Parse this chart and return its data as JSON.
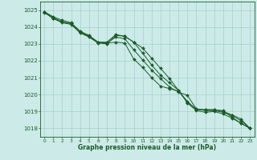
{
  "background_color": "#cceae7",
  "grid_color": "#aacfcc",
  "line_color": "#1a5c2a",
  "marker_color": "#1a5c2a",
  "xlabel": "Graphe pression niveau de la mer (hPa)",
  "xlim": [
    -0.5,
    23.5
  ],
  "ylim": [
    1017.5,
    1025.5
  ],
  "yticks": [
    1018,
    1019,
    1020,
    1021,
    1022,
    1023,
    1024,
    1025
  ],
  "xticks": [
    0,
    1,
    2,
    3,
    4,
    5,
    6,
    7,
    8,
    9,
    10,
    11,
    12,
    13,
    14,
    15,
    16,
    17,
    18,
    19,
    20,
    21,
    22,
    23
  ],
  "series": [
    [
      1024.9,
      1024.6,
      1024.4,
      1024.25,
      1023.75,
      1023.5,
      1023.1,
      1023.1,
      1023.55,
      1023.45,
      1023.1,
      1022.75,
      1022.15,
      1021.55,
      1020.95,
      1020.25,
      1019.55,
      1019.15,
      1019.1,
      1019.1,
      1019.05,
      1018.65,
      1018.3,
      1018.0
    ],
    [
      1024.9,
      1024.55,
      1024.3,
      1024.2,
      1023.7,
      1023.45,
      1023.1,
      1023.05,
      1023.4,
      1023.3,
      1022.65,
      1022.05,
      1021.45,
      1020.95,
      1020.45,
      1020.15,
      1019.95,
      1019.15,
      1019.05,
      1019.05,
      1018.95,
      1018.75,
      1018.45,
      1018.0
    ],
    [
      1024.9,
      1024.5,
      1024.3,
      1024.2,
      1023.7,
      1023.45,
      1023.1,
      1023.05,
      1023.1,
      1023.05,
      1022.1,
      1021.6,
      1021.0,
      1020.5,
      1020.35,
      1020.2,
      1019.6,
      1019.1,
      1019.1,
      1019.1,
      1019.0,
      1018.8,
      1018.55,
      1018.0
    ],
    [
      1024.85,
      1024.5,
      1024.25,
      1024.15,
      1023.65,
      1023.4,
      1023.05,
      1023.0,
      1023.5,
      1023.45,
      1023.1,
      1022.45,
      1021.75,
      1021.15,
      1020.7,
      1020.25,
      1019.5,
      1019.05,
      1018.95,
      1019.0,
      1018.85,
      1018.6,
      1018.3,
      1018.0
    ]
  ]
}
